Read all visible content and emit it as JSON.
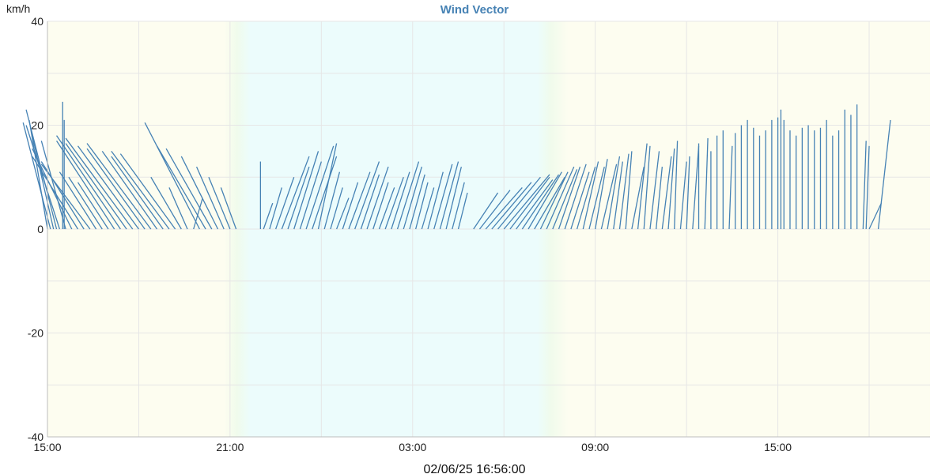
{
  "chart_data": {
    "type": "line",
    "title": "Wind Vector",
    "ylabel": "km/h",
    "ylim": [
      -40,
      40
    ],
    "yticks": [
      40,
      20,
      0,
      -20,
      -40
    ],
    "yticks_labels": [
      "40",
      "20",
      "0",
      "-20",
      "-40"
    ],
    "x_range_hours": [
      15.0,
      44.0
    ],
    "xticks_hours": [
      15,
      21,
      27,
      33,
      39
    ],
    "xticks_labels": [
      "15:00",
      "21:00",
      "03:00",
      "09:00",
      "15:00"
    ],
    "footer": "02/06/25 16:56:00",
    "grid": true,
    "legend": "none",
    "series": [
      {
        "color": "#4682b4",
        "segments": [
          [
            15.0,
            21.0,
            -0.6
          ],
          [
            15.1,
            20.5,
            -0.9
          ],
          [
            15.2,
            18.0,
            -0.7
          ],
          [
            15.3,
            23.0,
            -1.0
          ],
          [
            15.4,
            20.0,
            -1.1
          ],
          [
            15.5,
            24.5,
            0.0
          ],
          [
            15.55,
            21.0,
            0.0
          ],
          [
            15.6,
            17.0,
            -0.8
          ],
          [
            15.8,
            15.5,
            -1.3
          ],
          [
            16.0,
            14.0,
            -1.5
          ],
          [
            16.2,
            13.0,
            -1.4
          ],
          [
            16.4,
            12.5,
            -1.6
          ],
          [
            16.6,
            11.0,
            -1.2
          ],
          [
            16.8,
            10.0,
            -1.1
          ],
          [
            17.0,
            9.0,
            -1.0
          ],
          [
            17.2,
            17.0,
            -1.9
          ],
          [
            17.4,
            18.0,
            -2.1
          ],
          [
            17.6,
            16.5,
            -2.0
          ],
          [
            17.8,
            17.5,
            -2.2
          ],
          [
            18.0,
            16.0,
            -2.0
          ],
          [
            18.2,
            15.5,
            -1.9
          ],
          [
            18.4,
            16.5,
            -2.1
          ],
          [
            18.6,
            15.0,
            -1.8
          ],
          [
            18.8,
            14.0,
            -1.7
          ],
          [
            19.0,
            15.0,
            -1.9
          ],
          [
            19.2,
            14.5,
            -1.8
          ],
          [
            19.4,
            10.0,
            -1.0
          ],
          [
            19.6,
            8.0,
            -0.6
          ],
          [
            19.8,
            6.0,
            0.3
          ],
          [
            20.0,
            20.5,
            -1.8
          ],
          [
            20.2,
            16.0,
            -1.6
          ],
          [
            20.4,
            15.5,
            -1.5
          ],
          [
            20.6,
            14.0,
            -1.2
          ],
          [
            20.8,
            12.0,
            -0.9
          ],
          [
            21.0,
            10.0,
            -0.7
          ],
          [
            21.2,
            8.0,
            -0.5
          ],
          [
            22.0,
            13.0,
            0.0
          ],
          [
            22.1,
            5.0,
            0.3
          ],
          [
            22.3,
            8.0,
            0.4
          ],
          [
            22.5,
            10.0,
            0.6
          ],
          [
            22.7,
            14.0,
            0.9
          ],
          [
            22.9,
            12.0,
            0.7
          ],
          [
            23.1,
            15.0,
            0.8
          ],
          [
            23.3,
            13.0,
            0.7
          ],
          [
            23.5,
            16.0,
            0.9
          ],
          [
            23.7,
            14.0,
            0.8
          ],
          [
            23.9,
            16.5,
            0.6
          ],
          [
            24.1,
            11.0,
            0.5
          ],
          [
            24.3,
            8.0,
            0.4
          ],
          [
            24.5,
            6.0,
            0.4
          ],
          [
            24.7,
            9.0,
            0.5
          ],
          [
            24.9,
            11.0,
            0.7
          ],
          [
            25.1,
            13.0,
            0.8
          ],
          [
            25.3,
            10.5,
            0.6
          ],
          [
            25.5,
            12.0,
            0.7
          ],
          [
            25.7,
            9.0,
            0.5
          ],
          [
            25.9,
            8.0,
            0.5
          ],
          [
            26.1,
            10.0,
            0.6
          ],
          [
            26.3,
            11.0,
            0.6
          ],
          [
            26.5,
            13.0,
            0.7
          ],
          [
            26.7,
            12.0,
            0.6
          ],
          [
            26.9,
            10.5,
            0.5
          ],
          [
            27.1,
            9.0,
            0.4
          ],
          [
            27.3,
            8.0,
            0.4
          ],
          [
            27.5,
            11.0,
            0.5
          ],
          [
            27.7,
            12.5,
            0.6
          ],
          [
            27.9,
            13.0,
            0.6
          ],
          [
            28.1,
            12.0,
            0.5
          ],
          [
            28.3,
            9.0,
            0.4
          ],
          [
            28.5,
            7.0,
            0.3
          ],
          [
            29.0,
            7.0,
            0.8
          ],
          [
            29.2,
            7.5,
            1.0
          ],
          [
            29.4,
            8.0,
            1.2
          ],
          [
            29.6,
            9.0,
            1.3
          ],
          [
            29.8,
            10.0,
            1.4
          ],
          [
            30.0,
            10.5,
            1.5
          ],
          [
            30.2,
            10.0,
            1.3
          ],
          [
            30.4,
            9.5,
            1.2
          ],
          [
            30.6,
            10.5,
            1.2
          ],
          [
            30.8,
            11.0,
            1.1
          ],
          [
            31.0,
            10.0,
            1.0
          ],
          [
            31.2,
            11.0,
            0.9
          ],
          [
            31.4,
            12.0,
            0.9
          ],
          [
            31.6,
            11.5,
            0.8
          ],
          [
            31.8,
            12.0,
            0.7
          ],
          [
            32.0,
            12.5,
            0.7
          ],
          [
            32.2,
            11.0,
            0.6
          ],
          [
            32.4,
            12.0,
            0.6
          ],
          [
            32.6,
            13.0,
            0.5
          ],
          [
            32.8,
            12.0,
            0.5
          ],
          [
            33.0,
            13.5,
            0.4
          ],
          [
            33.2,
            12.5,
            0.5
          ],
          [
            33.4,
            14.0,
            0.4
          ],
          [
            33.6,
            13.0,
            0.3
          ],
          [
            33.8,
            14.5,
            0.3
          ],
          [
            34.0,
            15.0,
            0.2
          ],
          [
            34.2,
            12.0,
            0.4
          ],
          [
            34.4,
            16.5,
            0.3
          ],
          [
            34.6,
            16.0,
            0.2
          ],
          [
            34.8,
            15.0,
            0.3
          ],
          [
            35.0,
            12.0,
            0.2
          ],
          [
            35.2,
            14.0,
            0.3
          ],
          [
            35.4,
            15.5,
            0.2
          ],
          [
            35.6,
            17.0,
            0.1
          ],
          [
            35.8,
            13.0,
            0.2
          ],
          [
            36.0,
            14.0,
            0.1
          ],
          [
            36.2,
            16.0,
            0.2
          ],
          [
            36.4,
            16.5,
            0.0
          ],
          [
            36.6,
            17.5,
            0.1
          ],
          [
            36.8,
            15.0,
            0.0
          ],
          [
            37.0,
            18.0,
            0.0
          ],
          [
            37.2,
            19.0,
            0.0
          ],
          [
            37.4,
            16.0,
            0.1
          ],
          [
            37.6,
            18.5,
            0.0
          ],
          [
            37.8,
            20.0,
            0.0
          ],
          [
            38.0,
            21.0,
            0.0
          ],
          [
            38.2,
            19.5,
            0.0
          ],
          [
            38.4,
            18.0,
            0.0
          ],
          [
            38.6,
            19.0,
            0.0
          ],
          [
            38.8,
            21.0,
            0.0
          ],
          [
            39.0,
            21.5,
            0.0
          ],
          [
            39.1,
            23.0,
            0.0
          ],
          [
            39.2,
            21.0,
            0.0
          ],
          [
            39.4,
            19.0,
            0.0
          ],
          [
            39.6,
            18.0,
            0.0
          ],
          [
            39.8,
            19.5,
            0.0
          ],
          [
            40.0,
            20.0,
            0.0
          ],
          [
            40.2,
            19.0,
            0.0
          ],
          [
            40.4,
            19.5,
            0.0
          ],
          [
            40.6,
            21.0,
            0.0
          ],
          [
            40.8,
            18.0,
            0.0
          ],
          [
            41.0,
            19.0,
            0.0
          ],
          [
            41.2,
            23.0,
            0.0
          ],
          [
            41.4,
            22.0,
            0.0
          ],
          [
            41.6,
            24.0,
            0.0
          ],
          [
            41.8,
            17.0,
            0.1
          ],
          [
            41.9,
            16.0,
            0.1
          ],
          [
            42.0,
            5.0,
            0.4
          ],
          [
            42.3,
            21.0,
            0.4
          ]
        ]
      }
    ]
  }
}
